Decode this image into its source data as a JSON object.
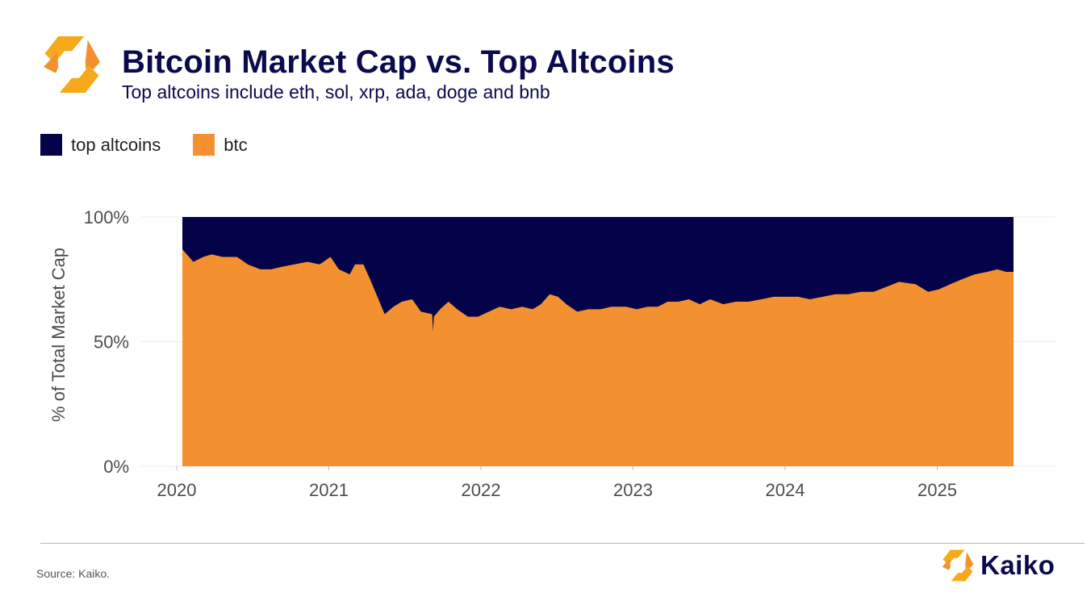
{
  "header": {
    "title": "Bitcoin Market Cap vs. Top Altcoins",
    "subtitle": "Top altcoins include eth, sol, xrp, ada, doge and bnb"
  },
  "legend": [
    {
      "label": "top altcoins",
      "color": "#04034a"
    },
    {
      "label": "btc",
      "color": "#f39130"
    }
  ],
  "chart_data": {
    "type": "area",
    "stacked": true,
    "normalized_percent": true,
    "ylabel": "% of Total Market Cap",
    "ylim": [
      0,
      100
    ],
    "y_ticks": [
      "0%",
      "50%",
      "100%"
    ],
    "x_ticks": [
      "2020",
      "2021",
      "2022",
      "2023",
      "2024",
      "2025"
    ],
    "grid": true,
    "legend_position": "top-left",
    "series": [
      {
        "name": "top altcoins",
        "color": "#04034a",
        "role": "remainder_to_100"
      },
      {
        "name": "btc",
        "color": "#f39130",
        "points": [
          [
            "2020-01-01",
            87
          ],
          [
            "2020-01-20",
            86
          ],
          [
            "2020-02-10",
            82
          ],
          [
            "2020-03-05",
            84
          ],
          [
            "2020-03-25",
            85
          ],
          [
            "2020-04-20",
            84
          ],
          [
            "2020-05-25",
            84
          ],
          [
            "2020-06-20",
            81
          ],
          [
            "2020-07-20",
            79
          ],
          [
            "2020-08-15",
            79
          ],
          [
            "2020-09-10",
            80
          ],
          [
            "2020-10-10",
            81
          ],
          [
            "2020-11-10",
            82
          ],
          [
            "2020-12-10",
            81
          ],
          [
            "2021-01-05",
            84
          ],
          [
            "2021-01-25",
            79
          ],
          [
            "2021-02-20",
            77
          ],
          [
            "2021-03-05",
            81
          ],
          [
            "2021-03-25",
            81
          ],
          [
            "2021-04-10",
            75
          ],
          [
            "2021-04-25",
            69
          ],
          [
            "2021-05-15",
            61
          ],
          [
            "2021-06-05",
            64
          ],
          [
            "2021-06-25",
            66
          ],
          [
            "2021-07-20",
            67
          ],
          [
            "2021-08-10",
            62
          ],
          [
            "2021-09-06",
            61
          ],
          [
            "2021-09-08",
            54
          ],
          [
            "2021-09-10",
            60
          ],
          [
            "2021-09-25",
            63
          ],
          [
            "2021-10-15",
            66
          ],
          [
            "2021-11-05",
            63
          ],
          [
            "2021-12-01",
            60
          ],
          [
            "2021-12-25",
            60
          ],
          [
            "2022-01-20",
            62
          ],
          [
            "2022-02-15",
            64
          ],
          [
            "2022-03-15",
            63
          ],
          [
            "2022-04-10",
            64
          ],
          [
            "2022-05-05",
            63
          ],
          [
            "2022-05-25",
            65
          ],
          [
            "2022-06-15",
            69
          ],
          [
            "2022-07-05",
            68
          ],
          [
            "2022-07-25",
            65
          ],
          [
            "2022-08-20",
            62
          ],
          [
            "2022-09-15",
            63
          ],
          [
            "2022-10-15",
            63
          ],
          [
            "2022-11-10",
            64
          ],
          [
            "2022-12-15",
            64
          ],
          [
            "2023-01-10",
            63
          ],
          [
            "2023-02-05",
            64
          ],
          [
            "2023-03-01",
            64
          ],
          [
            "2023-03-25",
            66
          ],
          [
            "2023-04-20",
            66
          ],
          [
            "2023-05-15",
            67
          ],
          [
            "2023-06-10",
            65
          ],
          [
            "2023-07-05",
            67
          ],
          [
            "2023-08-05",
            65
          ],
          [
            "2023-09-05",
            66
          ],
          [
            "2023-10-05",
            66
          ],
          [
            "2023-11-05",
            67
          ],
          [
            "2023-12-05",
            68
          ],
          [
            "2024-01-01",
            68
          ],
          [
            "2024-02-01",
            68
          ],
          [
            "2024-03-01",
            67
          ],
          [
            "2024-04-01",
            68
          ],
          [
            "2024-05-01",
            69
          ],
          [
            "2024-06-01",
            69
          ],
          [
            "2024-07-01",
            70
          ],
          [
            "2024-08-01",
            70
          ],
          [
            "2024-09-01",
            72
          ],
          [
            "2024-10-01",
            74
          ],
          [
            "2024-11-10",
            73
          ],
          [
            "2024-12-10",
            70
          ],
          [
            "2025-01-05",
            71
          ],
          [
            "2025-02-01",
            73
          ],
          [
            "2025-03-01",
            75
          ],
          [
            "2025-04-01",
            77
          ],
          [
            "2025-05-01",
            78
          ],
          [
            "2025-05-25",
            79
          ],
          [
            "2025-06-15",
            78
          ],
          [
            "2025-07-10",
            78
          ]
        ]
      }
    ]
  },
  "footer": {
    "source": "Source: Kaiko.",
    "brand": "Kaiko"
  }
}
